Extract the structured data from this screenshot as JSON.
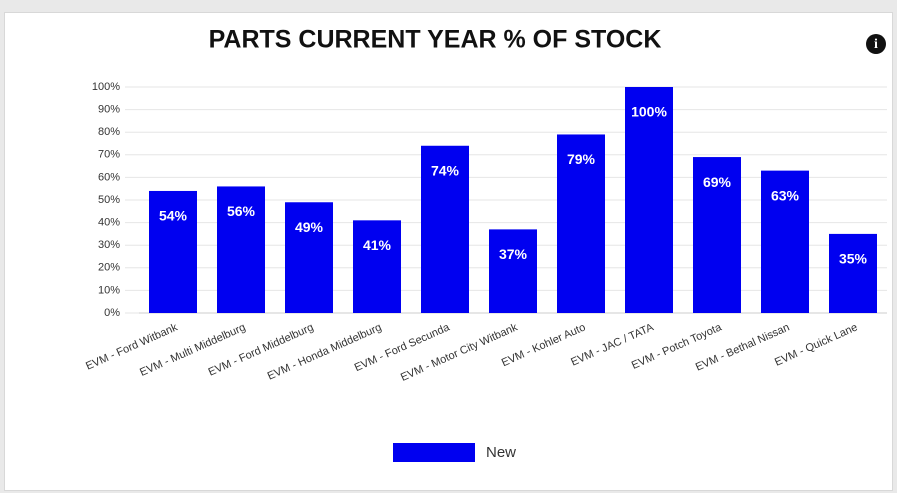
{
  "chart_data": {
    "type": "bar",
    "title": "PARTS CURRENT YEAR % OF STOCK",
    "categories": [
      "EVM - Ford Witbank",
      "EVM - Multi Middelburg",
      "EVM - Ford Middelburg",
      "EVM - Honda Middelburg",
      "EVM - Ford Secunda",
      "EVM - Motor City Witbank",
      "EVM - Kohler Auto",
      "EVM - JAC / TATA",
      "EVM - Potch Toyota",
      "EVM - Bethal Nissan",
      "EVM - Quick Lane"
    ],
    "series": [
      {
        "name": "New",
        "color": "#0000f0",
        "values": [
          54,
          56,
          49,
          41,
          74,
          37,
          79,
          100,
          69,
          63,
          35
        ],
        "value_labels": [
          "54%",
          "56%",
          "49%",
          "41%",
          "74%",
          "37%",
          "79%",
          "100%",
          "69%",
          "63%",
          "35%"
        ]
      }
    ],
    "ylim": [
      0,
      100
    ],
    "yticks": [
      {
        "value": 0,
        "label": "0%"
      },
      {
        "value": 10,
        "label": "10%"
      },
      {
        "value": 20,
        "label": "20%"
      },
      {
        "value": 30,
        "label": "30%"
      },
      {
        "value": 40,
        "label": "40%"
      },
      {
        "value": 50,
        "label": "50%"
      },
      {
        "value": 60,
        "label": "60%"
      },
      {
        "value": 70,
        "label": "70%"
      },
      {
        "value": 80,
        "label": "80%"
      },
      {
        "value": 90,
        "label": "90%"
      },
      {
        "value": 100,
        "label": "100%"
      }
    ],
    "grid": true,
    "legend": "bottom"
  }
}
